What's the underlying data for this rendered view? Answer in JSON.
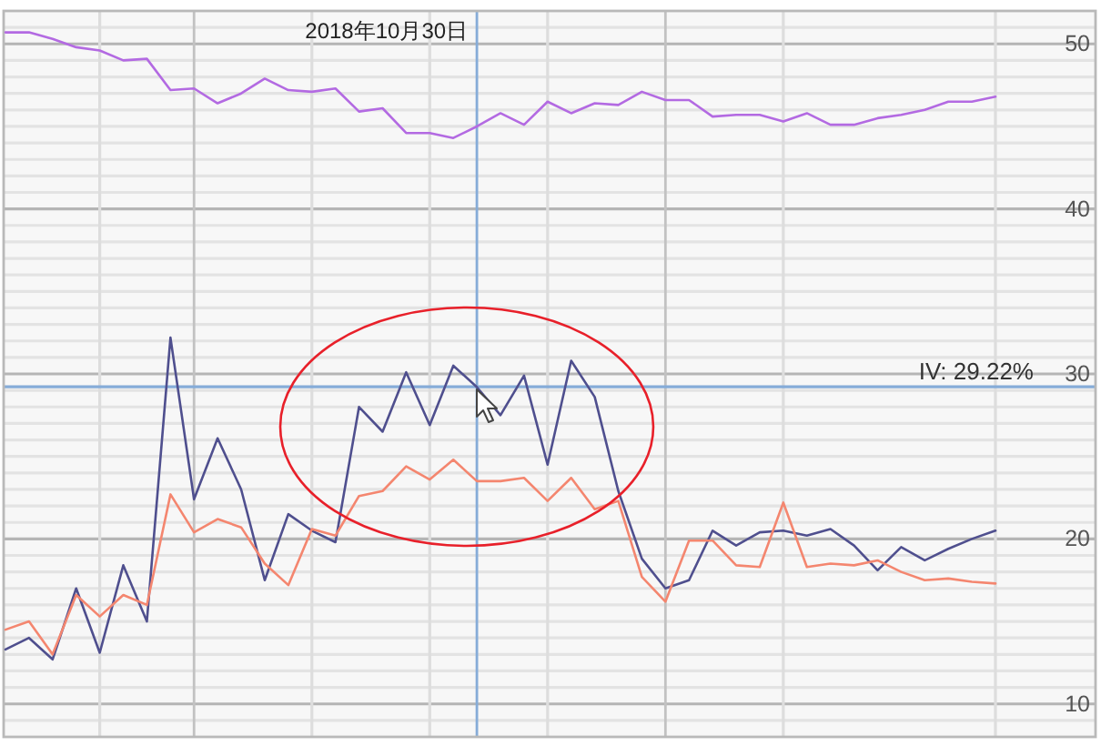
{
  "chart_data": {
    "type": "line",
    "categories": [
      null,
      null,
      null,
      null,
      null,
      null,
      null,
      null,
      null,
      null,
      null,
      null,
      null,
      null,
      null,
      null,
      null,
      null,
      null,
      null,
      null,
      null,
      null,
      null,
      null,
      null,
      null,
      null,
      null,
      null,
      null,
      null,
      null,
      null,
      null,
      null,
      null,
      null,
      null,
      null,
      null,
      null,
      null
    ],
    "series": [
      {
        "color": "#b36ae2",
        "values": [
          50.7,
          50.7,
          50.3,
          49.8,
          49.6,
          49.0,
          49.1,
          47.2,
          47.3,
          46.4,
          47.0,
          47.9,
          47.2,
          47.1,
          47.3,
          45.9,
          46.1,
          44.6,
          44.6,
          44.3,
          45.0,
          45.8,
          45.1,
          46.5,
          45.8,
          46.4,
          46.3,
          47.1,
          46.6,
          46.6,
          45.6,
          45.7,
          45.7,
          45.3,
          45.8,
          45.1,
          45.1,
          45.5,
          45.7,
          46.0,
          46.5,
          46.5,
          46.8
        ]
      },
      {
        "color": "#4f4f8e",
        "values": [
          13.3,
          14.0,
          12.7,
          17.0,
          13.1,
          18.4,
          15.0,
          32.2,
          22.4,
          26.1,
          23.0,
          17.5,
          21.5,
          20.5,
          19.8,
          28.0,
          26.5,
          30.1,
          26.9,
          30.5,
          29.2,
          27.5,
          29.9,
          24.5,
          30.8,
          28.6,
          22.9,
          18.8,
          17.0,
          17.5,
          20.5,
          19.6,
          20.4,
          20.5,
          20.2,
          20.6,
          19.6,
          18.1,
          19.5,
          18.7,
          19.4,
          20.0,
          20.5
        ]
      },
      {
        "color": "#f4866f",
        "values": [
          14.5,
          15.0,
          13.0,
          16.6,
          15.3,
          16.6,
          16.0,
          22.7,
          20.4,
          21.2,
          20.7,
          18.5,
          17.2,
          20.6,
          20.2,
          22.6,
          22.9,
          24.4,
          23.6,
          24.8,
          23.5,
          23.5,
          23.7,
          22.3,
          23.7,
          21.8,
          22.3,
          17.7,
          16.2,
          19.9,
          19.9,
          18.4,
          18.3,
          22.2,
          18.3,
          18.5,
          18.4,
          18.7,
          18.0,
          17.5,
          17.6,
          17.4,
          17.3
        ]
      }
    ],
    "ylim": [
      8,
      52
    ],
    "yticks": [
      {
        "value": 9,
        "label": null
      },
      10,
      {
        "value": 11,
        "label": null
      },
      {
        "value": 12,
        "label": null
      },
      {
        "value": 13,
        "label": null
      },
      {
        "value": 14,
        "label": null
      },
      {
        "value": 15,
        "label": null
      },
      {
        "value": 16,
        "label": null
      },
      {
        "value": 17,
        "label": null
      },
      {
        "value": 18,
        "label": null
      },
      {
        "value": 19,
        "label": null
      },
      20,
      {
        "value": 21,
        "label": null
      },
      {
        "value": 22,
        "label": null
      },
      {
        "value": 23,
        "label": null
      },
      {
        "value": 24,
        "label": null
      },
      {
        "value": 25,
        "label": null
      },
      {
        "value": 26,
        "label": null
      },
      {
        "value": 27,
        "label": null
      },
      {
        "value": 28,
        "label": null
      },
      {
        "value": 29,
        "label": null
      },
      30,
      {
        "value": 31,
        "label": null
      },
      {
        "value": 32,
        "label": null
      },
      {
        "value": 33,
        "label": null
      },
      {
        "value": 34,
        "label": null
      },
      {
        "value": 35,
        "label": null
      },
      {
        "value": 36,
        "label": null
      },
      {
        "value": 37,
        "label": null
      },
      {
        "value": 38,
        "label": null
      },
      {
        "value": 39,
        "label": null
      },
      40,
      {
        "value": 41,
        "label": null
      },
      {
        "value": 42,
        "label": null
      },
      {
        "value": 43,
        "label": null
      },
      {
        "value": 44,
        "label": null
      },
      {
        "value": 45,
        "label": null
      },
      {
        "value": 46,
        "label": null
      },
      {
        "value": 47,
        "label": null
      },
      {
        "value": 48,
        "label": null
      },
      {
        "value": 49,
        "label": null
      },
      50,
      {
        "value": 51,
        "label": null
      }
    ],
    "grid": true,
    "line_style": "solid",
    "ref_lines": [
      {
        "axis": "y",
        "value": 29.22,
        "label": "IV: 29.22%",
        "color": "#86acd8"
      }
    ],
    "annotations": [
      "2018年10月30日"
    ]
  }
}
